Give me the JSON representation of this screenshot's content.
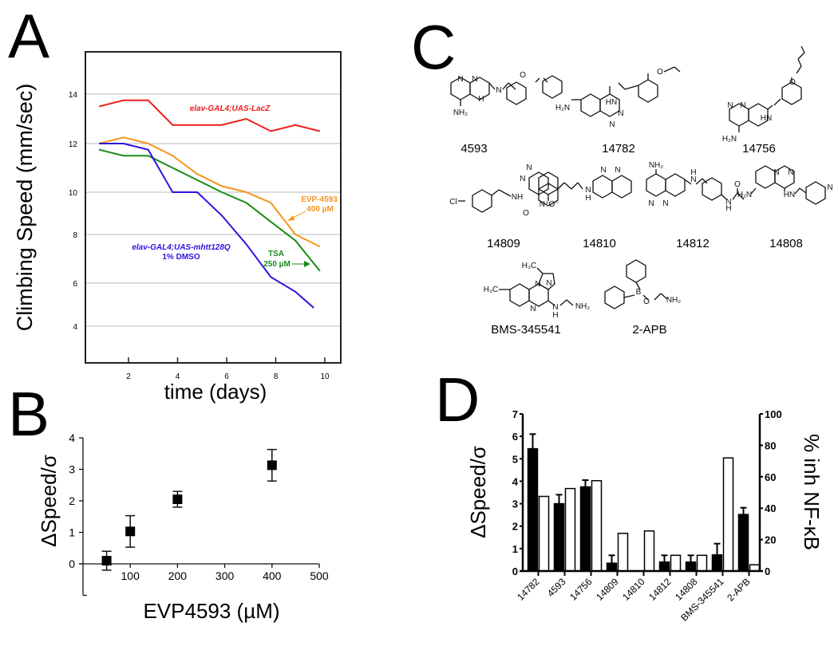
{
  "figure": {
    "panels": [
      "A",
      "B",
      "C",
      "D"
    ]
  },
  "chart_data": [
    {
      "id": "A",
      "type": "line",
      "title": "",
      "xlabel": "time (days)",
      "ylabel": "Climbing Speed (mm/sec)",
      "xlim": [
        0,
        10.8
      ],
      "ylim": [
        2.5,
        15.5
      ],
      "xticks": [
        2,
        4,
        6,
        8,
        10
      ],
      "yticks": [
        4,
        6,
        8,
        10,
        12,
        14
      ],
      "grid": true,
      "series": [
        {
          "name": "elav-GAL4;UAS-LacZ",
          "color": "#ee1c1c",
          "x": [
            0.8,
            1.8,
            2.8,
            3.8,
            4.8,
            5.8,
            6.8,
            7.8,
            8.8,
            9.8
          ],
          "y": [
            13.5,
            13.75,
            13.75,
            12.75,
            12.75,
            12.75,
            13.0,
            12.5,
            12.75,
            12.5
          ]
        },
        {
          "name": "EVP-4593 400 µM",
          "color": "#f7941d",
          "x": [
            0.8,
            1.8,
            2.8,
            3.8,
            4.8,
            5.8,
            6.8,
            7.8,
            8.8,
            9.8
          ],
          "y": [
            12.0,
            12.25,
            12.0,
            11.5,
            10.75,
            10.25,
            10.0,
            9.5,
            8.0,
            7.5
          ]
        },
        {
          "name": "TSA 250 µM",
          "color": "#1a8a1a",
          "x": [
            0.8,
            1.8,
            2.8,
            3.8,
            4.8,
            5.8,
            6.8,
            7.8,
            8.8,
            9.8
          ],
          "y": [
            11.75,
            11.5,
            11.5,
            11.0,
            10.5,
            10.0,
            9.5,
            8.6,
            7.75,
            6.5
          ]
        },
        {
          "name": "elav-GAL4;UAS-mhtt128Q 1% DMSO",
          "color": "#2a14e0",
          "x": [
            0.8,
            1.8,
            2.8,
            3.8,
            4.8,
            5.8,
            6.8,
            7.8,
            8.8,
            9.55
          ],
          "y": [
            12.0,
            12.0,
            11.75,
            10.0,
            10.0,
            8.9,
            7.6,
            6.25,
            5.6,
            4.85
          ]
        }
      ],
      "annotations": [
        {
          "text": "elav-GAL4;UAS-LacZ",
          "color": "#ee1c1c"
        },
        {
          "text": "EVP-4593",
          "color": "#f7941d"
        },
        {
          "text": "400 µM",
          "color": "#f7941d"
        },
        {
          "text": "elav-GAL4;UAS-mhtt128Q",
          "color": "#2a14e0"
        },
        {
          "text": "1% DMSO",
          "color": "#2a14e0"
        },
        {
          "text": "TSA",
          "color": "#1a8a1a"
        },
        {
          "text": "250 µM",
          "color": "#1a8a1a"
        }
      ]
    },
    {
      "id": "B",
      "type": "scatter",
      "title": "",
      "xlabel": "EVP4593 (µM)",
      "ylabel": "ΔSpeed/σ",
      "xlim": [
        0,
        500
      ],
      "ylim": [
        -1,
        4
      ],
      "xticks": [
        100,
        200,
        300,
        400,
        500
      ],
      "yticks": [
        0,
        1,
        2,
        3,
        4
      ],
      "grid": false,
      "series": [
        {
          "name": "EVP4593",
          "x": [
            50,
            100,
            200,
            400
          ],
          "y": [
            0.1,
            1.03,
            2.05,
            3.13
          ],
          "err": [
            0.3,
            0.5,
            0.25,
            0.5
          ]
        }
      ]
    },
    {
      "id": "D",
      "type": "bar",
      "title": "",
      "ylabel": "ΔSpeed/σ",
      "y2label": "% inh NF-κB",
      "ylim": [
        0,
        7
      ],
      "y2lim": [
        0,
        100
      ],
      "yticks": [
        0,
        1,
        2,
        3,
        4,
        5,
        6,
        7
      ],
      "y2ticks": [
        0,
        20,
        40,
        60,
        80,
        100
      ],
      "categories": [
        "14782",
        "4593",
        "14756",
        "14809",
        "14810",
        "14812",
        "14808",
        "BMS-345541",
        "2-APB"
      ],
      "series": [
        {
          "name": "ΔSpeed/σ",
          "axis": "left",
          "fill": "#000000",
          "values": [
            5.45,
            3.0,
            3.75,
            0.35,
            0.0,
            0.4,
            0.4,
            0.72,
            2.52
          ],
          "err": [
            0.65,
            0.4,
            0.3,
            0.35,
            0.0,
            0.3,
            0.3,
            0.5,
            0.3
          ]
        },
        {
          "name": "% inh NF-κB",
          "axis": "right",
          "fill": "#ffffff",
          "values": [
            47.5,
            52.5,
            57.5,
            24,
            25.5,
            10,
            10,
            72,
            4
          ]
        }
      ]
    }
  ],
  "panel_c": {
    "compounds": [
      {
        "id": "4593",
        "label": "4593"
      },
      {
        "id": "14782",
        "label": "14782"
      },
      {
        "id": "14756",
        "label": "14756"
      },
      {
        "id": "14809",
        "label": "14809"
      },
      {
        "id": "14810",
        "label": "14810"
      },
      {
        "id": "14812",
        "label": "14812"
      },
      {
        "id": "14808",
        "label": "14808"
      },
      {
        "id": "bms",
        "label": "BMS-345541"
      },
      {
        "id": "2apb",
        "label": "2-APB"
      }
    ],
    "atoms": {
      "N": "N",
      "NH": "NH",
      "HN": "HN",
      "H": "H",
      "NH2": "NH₂",
      "H2N": "H₂N",
      "O": "O",
      "Cl": "Cl",
      "B": "B",
      "H3C": "H₃C",
      "NO2": "N⁺",
      "Ominus": "O⁻"
    }
  }
}
